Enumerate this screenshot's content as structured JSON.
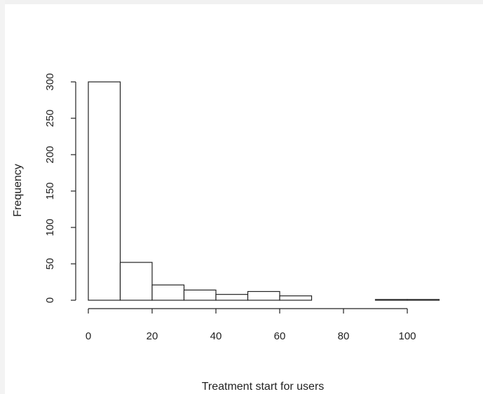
{
  "chart_data": {
    "type": "histogram",
    "xlabel": "Treatment start for users",
    "ylabel": "Frequency",
    "bins": [
      {
        "from": 0,
        "to": 10,
        "count": 300
      },
      {
        "from": 10,
        "to": 20,
        "count": 52
      },
      {
        "from": 20,
        "to": 30,
        "count": 21
      },
      {
        "from": 30,
        "to": 40,
        "count": 14
      },
      {
        "from": 40,
        "to": 50,
        "count": 8
      },
      {
        "from": 50,
        "to": 60,
        "count": 12
      },
      {
        "from": 60,
        "to": 70,
        "count": 6
      },
      {
        "from": 70,
        "to": 80,
        "count": 0
      },
      {
        "from": 80,
        "to": 90,
        "count": 0
      },
      {
        "from": 90,
        "to": 100,
        "count": 1
      },
      {
        "from": 100,
        "to": 110,
        "count": 1
      }
    ],
    "xlim": [
      0,
      110
    ],
    "ylim": [
      0,
      300
    ],
    "x_ticks": [
      0,
      20,
      40,
      60,
      80,
      100
    ],
    "y_ticks": [
      0,
      50,
      100,
      150,
      200,
      250,
      300
    ],
    "grid": false,
    "bar_fill": "#ffffff",
    "bar_stroke": "#222222"
  }
}
